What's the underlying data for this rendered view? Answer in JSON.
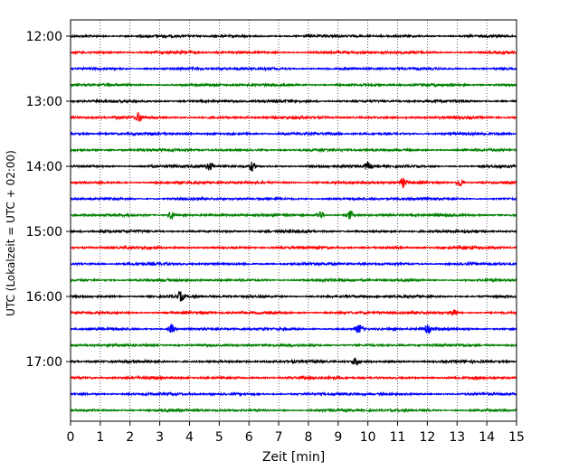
{
  "chart_data": {
    "type": "line",
    "title": "",
    "xlabel": "Zeit  [min]",
    "ylabel": "UTC (Lokalzeit = UTC + 02:00)",
    "xlim": [
      0,
      15
    ],
    "x_ticks": [
      "0",
      "1",
      "2",
      "3",
      "4",
      "5",
      "6",
      "7",
      "8",
      "9",
      "10",
      "11",
      "12",
      "13",
      "14",
      "15"
    ],
    "y_tick_labels": [
      "12:00",
      "13:00",
      "14:00",
      "15:00",
      "16:00",
      "17:00"
    ],
    "grid": "vertical dotted at each minute",
    "trace_interval_minutes": 15,
    "trace_colors_cycle": [
      "#000000",
      "#ff0000",
      "#0000ff",
      "#008000"
    ],
    "traces": [
      {
        "start": "12:00",
        "color": "#000000"
      },
      {
        "start": "12:15",
        "color": "#ff0000"
      },
      {
        "start": "12:30",
        "color": "#0000ff"
      },
      {
        "start": "12:45",
        "color": "#008000"
      },
      {
        "start": "13:00",
        "color": "#000000"
      },
      {
        "start": "13:15",
        "color": "#ff0000"
      },
      {
        "start": "13:30",
        "color": "#0000ff"
      },
      {
        "start": "13:45",
        "color": "#008000"
      },
      {
        "start": "14:00",
        "color": "#000000"
      },
      {
        "start": "14:15",
        "color": "#ff0000"
      },
      {
        "start": "14:30",
        "color": "#0000ff"
      },
      {
        "start": "14:45",
        "color": "#008000"
      },
      {
        "start": "15:00",
        "color": "#000000"
      },
      {
        "start": "15:15",
        "color": "#ff0000"
      },
      {
        "start": "15:30",
        "color": "#0000ff"
      },
      {
        "start": "15:45",
        "color": "#008000"
      },
      {
        "start": "16:00",
        "color": "#000000"
      },
      {
        "start": "16:15",
        "color": "#ff0000"
      },
      {
        "start": "16:30",
        "color": "#0000ff"
      },
      {
        "start": "16:45",
        "color": "#008000"
      },
      {
        "start": "17:00",
        "color": "#000000"
      },
      {
        "start": "17:15",
        "color": "#ff0000"
      },
      {
        "start": "17:30",
        "color": "#0000ff"
      },
      {
        "start": "17:45",
        "color": "#008000"
      }
    ],
    "events": [
      {
        "trace": "13:15",
        "minute": 2.3
      },
      {
        "trace": "14:00",
        "minute": 4.7
      },
      {
        "trace": "14:00",
        "minute": 6.1
      },
      {
        "trace": "14:00",
        "minute": 10.0
      },
      {
        "trace": "14:15",
        "minute": 11.2
      },
      {
        "trace": "14:15",
        "minute": 13.1
      },
      {
        "trace": "14:45",
        "minute": 3.4
      },
      {
        "trace": "14:45",
        "minute": 8.4
      },
      {
        "trace": "14:45",
        "minute": 9.4
      },
      {
        "trace": "16:00",
        "minute": 3.7
      },
      {
        "trace": "16:15",
        "minute": 12.9
      },
      {
        "trace": "16:30",
        "minute": 3.4
      },
      {
        "trace": "16:30",
        "minute": 9.7
      },
      {
        "trace": "16:30",
        "minute": 12.0
      },
      {
        "trace": "17:00",
        "minute": 9.6
      }
    ]
  }
}
